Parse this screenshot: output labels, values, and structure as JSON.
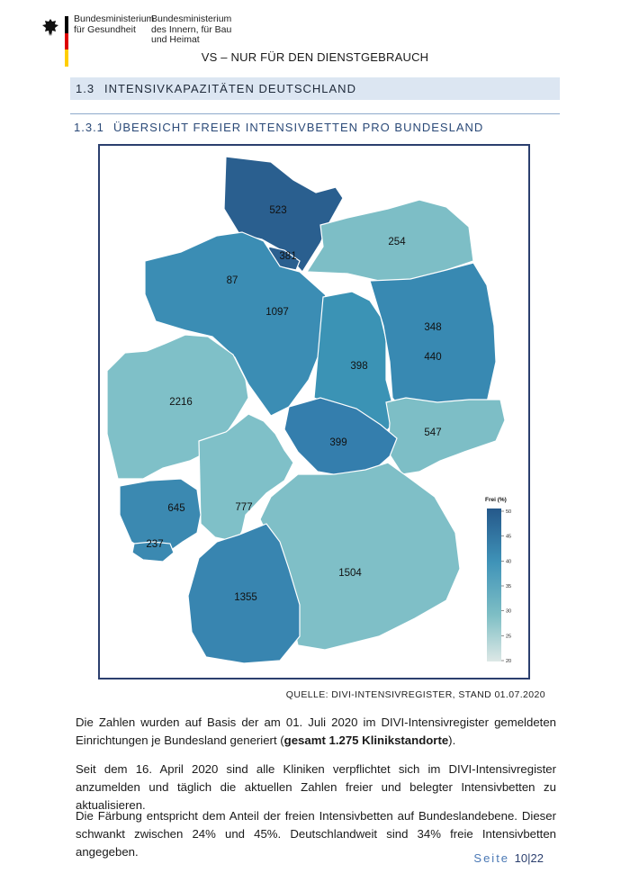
{
  "header": {
    "ministry_1_line1": "Bundesministerium",
    "ministry_1_line2": "für Gesundheit",
    "ministry_2_line1": "Bundesministerium",
    "ministry_2_line2": "des Innern, für Bau",
    "ministry_2_line3": "und Heimat",
    "classification": "VS – NUR FÜR DEN DIENSTGEBRAUCH",
    "flag_colors": [
      "#000000",
      "#dd0000",
      "#ffce00"
    ]
  },
  "section": {
    "number": "1.3",
    "title": "INTENSIVKAPAZITÄTEN DEUTSCHLAND"
  },
  "subsection": {
    "number": "1.3.1",
    "title": "ÜBERSICHT FREIER INTENSIVBETTEN PRO BUNDESLAND"
  },
  "chart_data": {
    "type": "choropleth",
    "value_name": "freie Intensivbetten",
    "legend": {
      "title": "Frei (%)",
      "ticks": [
        "50",
        "45",
        "40",
        "35",
        "30",
        "25",
        "20"
      ],
      "range": [
        20,
        50
      ],
      "colors": [
        "#dde8e6",
        "#7fbfc5",
        "#3f93b8",
        "#25588a"
      ],
      "placement": "bottom-right"
    },
    "regions": [
      {
        "label": "523",
        "color": "#2a5f8f"
      },
      {
        "label": "381",
        "color": "#2a5f8f"
      },
      {
        "label": "254",
        "color": "#7dbec6"
      },
      {
        "label": "87",
        "color": "#3b8db4"
      },
      {
        "label": "1097",
        "color": "#3b8db4"
      },
      {
        "label": "348",
        "color": "#d8e5e0"
      },
      {
        "label": "398",
        "color": "#3b93b5"
      },
      {
        "label": "440",
        "color": "#3889b2"
      },
      {
        "label": "2216",
        "color": "#7fc0c8"
      },
      {
        "label": "547",
        "color": "#7dbec6"
      },
      {
        "label": "399",
        "color": "#347ead"
      },
      {
        "label": "777",
        "color": "#7fc0c8"
      },
      {
        "label": "645",
        "color": "#3b89b1"
      },
      {
        "label": "237",
        "color": "#3b89b1"
      },
      {
        "label": "1504",
        "color": "#7fbfc7"
      },
      {
        "label": "1355",
        "color": "#3885b0"
      }
    ]
  },
  "source_note": "QUELLE: DIVI-INTENSIVREGISTER, STAND 01.07.2020",
  "body": {
    "p1_a": "Die Zahlen wurden auf Basis der am 01. Juli 2020 im DIVI-Intensivregister gemeldeten Einrichtungen je Bundesland generiert (",
    "p1_bold": "gesamt 1.275 Klinikstandorte",
    "p1_b": ").",
    "p2": "Seit dem 16. April 2020 sind alle Kliniken verpflichtet sich im DIVI-Intensivregister anzumelden und täglich die aktuellen Zahlen freier und belegter Intensivbetten zu aktualisieren.",
    "p3": "Die Färbung entspricht dem Anteil der freien Intensivbetten auf Bundeslandebene. Dieser schwankt zwischen 24% und 45%. Deutschlandweit sind 34% freie Intensivbetten angegeben."
  },
  "footer": {
    "page_label": "Seite",
    "page_current": "10",
    "page_sep": "|",
    "page_total": "22"
  }
}
